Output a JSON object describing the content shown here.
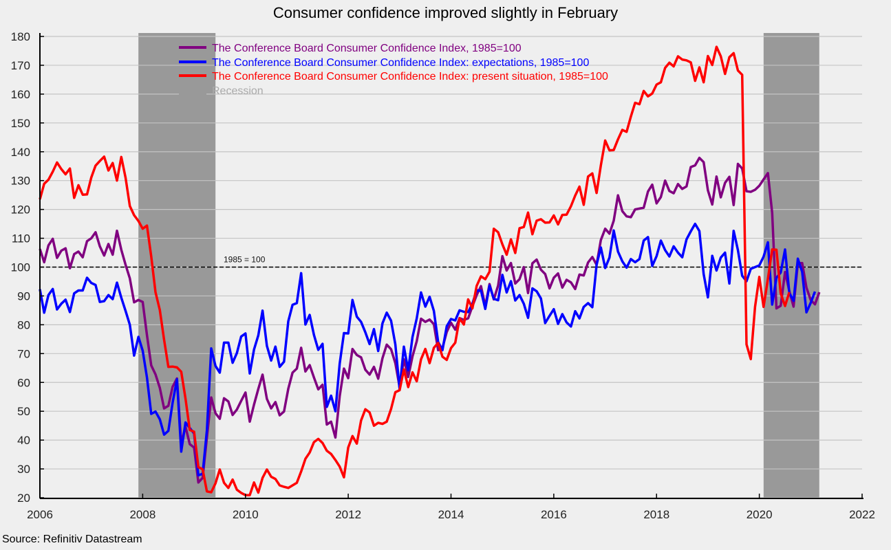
{
  "chart_data": {
    "type": "line",
    "title": "Consumer confidence improved slightly in February",
    "source": "Source: Refinitiv Datastream",
    "xlabel": "",
    "ylabel": "",
    "xlim": [
      2006,
      2022
    ],
    "ylim": [
      20,
      180
    ],
    "x_ticks": [
      "2006",
      "2008",
      "2010",
      "2012",
      "2014",
      "2016",
      "2018",
      "2020",
      "2022"
    ],
    "y_ticks": [
      "20",
      "30",
      "40",
      "50",
      "60",
      "70",
      "80",
      "90",
      "100",
      "110",
      "120",
      "130",
      "140",
      "150",
      "160",
      "170",
      "180"
    ],
    "grid": "horizontal",
    "legend_position": "top-left",
    "x_start": "2006-01",
    "frequency": "monthly",
    "reference_line": {
      "value": 100,
      "label": "1985 = 100",
      "color": "#000000"
    },
    "recessions": [
      {
        "start": 2007.917,
        "end": 2009.417
      },
      {
        "start": 2020.083,
        "end": 2021.167
      }
    ],
    "recession_legend": {
      "name": "Recession",
      "color": "#999999"
    },
    "series": [
      {
        "name": "The Conference Board Consumer Confidence Index, 1985=100",
        "color": "#800080",
        "values": [
          106.3,
          101.7,
          107.5,
          109.8,
          103.2,
          105.7,
          106.5,
          99.6,
          104.5,
          105.4,
          103.4,
          109.0,
          110.0,
          112.1,
          107.2,
          104.0,
          108.0,
          104.3,
          112.6,
          106.0,
          100.8,
          96.1,
          87.8,
          88.6,
          87.9,
          76.4,
          65.9,
          62.8,
          58.1,
          51.0,
          51.9,
          58.5,
          61.4,
          38.8,
          44.7,
          38.6,
          37.4,
          25.3,
          26.9,
          40.8,
          54.8,
          49.3,
          47.4,
          54.5,
          53.4,
          48.7,
          50.6,
          53.6,
          56.5,
          46.4,
          52.3,
          57.7,
          62.7,
          54.3,
          51.0,
          53.2,
          48.6,
          49.9,
          57.8,
          63.4,
          64.8,
          72.0,
          63.8,
          66.0,
          61.7,
          57.6,
          59.2,
          45.4,
          46.4,
          40.9,
          55.2,
          64.8,
          61.5,
          71.6,
          69.5,
          68.7,
          64.4,
          62.7,
          65.4,
          61.3,
          68.4,
          73.1,
          71.5,
          66.7,
          58.4,
          68.0,
          61.9,
          69.0,
          74.3,
          82.1,
          81.0,
          81.8,
          80.2,
          71.2,
          72.0,
          77.5,
          80.7,
          78.3,
          82.3,
          81.7,
          82.2,
          86.4,
          90.3,
          93.4,
          86.4,
          94.1,
          88.8,
          93.6,
          103.8,
          98.8,
          101.4,
          94.3,
          95.8,
          100.0,
          91.0,
          101.3,
          102.6,
          99.1,
          97.6,
          92.6,
          96.3,
          97.8,
          92.9,
          95.6,
          94.7,
          92.4,
          97.4,
          97.1,
          101.6,
          103.5,
          100.8,
          109.4,
          113.3,
          111.6,
          116.1,
          124.9,
          119.4,
          117.6,
          117.3,
          120.0,
          120.3,
          120.6,
          126.2,
          128.6,
          122.1,
          124.3,
          130.0,
          126.4,
          125.6,
          128.8,
          127.1,
          128.0,
          134.7,
          135.3,
          137.9,
          136.4,
          126.6,
          121.7,
          131.4,
          124.2,
          129.2,
          131.3,
          121.5,
          135.8,
          134.2,
          126.3,
          126.1,
          126.8,
          128.2,
          130.4,
          132.6,
          118.8,
          85.7,
          86.6,
          98.3,
          91.7,
          86.3,
          101.3,
          101.4,
          92.9,
          88.6,
          87.1,
          91.3
        ]
      },
      {
        "name": "The Conference Board Consumer Confidence Index: expectations, 1985=100",
        "color": "#0000ff",
        "values": [
          92.3,
          84.2,
          90.3,
          92.4,
          85.3,
          87.3,
          88.7,
          84.4,
          90.9,
          91.9,
          91.9,
          96.3,
          94.5,
          93.8,
          87.9,
          88.2,
          90.3,
          88.9,
          94.6,
          89.4,
          84.8,
          80.0,
          69.3,
          75.8,
          71.0,
          61.7,
          49.1,
          49.9,
          47.2,
          41.9,
          43.2,
          53.0,
          61.1,
          36.0,
          46.1,
          44.2,
          42.3,
          27.8,
          28.3,
          43.4,
          71.8,
          65.7,
          63.4,
          73.8,
          73.8,
          66.8,
          70.2,
          75.9,
          77.0,
          63.1,
          71.4,
          76.3,
          84.9,
          72.7,
          67.6,
          72.4,
          65.4,
          67.2,
          81.2,
          86.9,
          87.5,
          97.9,
          80.1,
          83.4,
          76.5,
          71.3,
          73.4,
          51.5,
          55.4,
          50.0,
          66.5,
          77.1,
          77.0,
          88.6,
          82.8,
          81.0,
          77.4,
          73.3,
          78.5,
          70.9,
          80.5,
          84.2,
          81.4,
          73.2,
          57.7,
          72.4,
          64.2,
          75.7,
          82.2,
          91.2,
          86.3,
          89.7,
          84.8,
          74.0,
          71.2,
          79.5,
          82.0,
          81.5,
          85.0,
          84.5,
          84.4,
          87.3,
          92.0,
          91.8,
          85.5,
          93.6,
          89.0,
          88.5,
          97.3,
          91.2,
          95.1,
          88.4,
          90.3,
          87.3,
          82.4,
          92.6,
          91.6,
          89.1,
          80.6,
          83.1,
          85.4,
          80.3,
          83.7,
          80.8,
          79.4,
          84.7,
          82.2,
          86.2,
          87.5,
          86.1,
          100.8,
          106.8,
          99.7,
          103.3,
          112.7,
          105.4,
          102.0,
          99.8,
          102.8,
          101.7,
          102.8,
          109.2,
          110.4,
          100.4,
          103.8,
          109.2,
          105.9,
          103.7,
          107.2,
          105.0,
          103.4,
          109.6,
          112.4,
          115.0,
          112.5,
          97.6,
          89.5,
          103.9,
          98.8,
          103.3,
          105.0,
          94.3,
          112.6,
          105.9,
          97.0,
          95.1,
          99.4,
          100.0,
          100.6,
          103.6,
          108.6,
          87.0,
          96.3,
          98.1,
          106.1,
          91.1,
          88.3,
          102.9,
          98.3,
          84.3,
          87.6,
          91.5
        ]
      },
      {
        "name": "The Conference Board Consumer Confidence Index: present situation, 1985=100",
        "color": "#ff0000",
        "values": [
          123.5,
          128.9,
          130.3,
          133.1,
          136.3,
          134.0,
          132.2,
          134.2,
          124.0,
          128.4,
          125.1,
          125.2,
          131.1,
          135.2,
          136.8,
          138.3,
          133.5,
          136.1,
          130.0,
          138.2,
          131.0,
          121.2,
          118.0,
          116.0,
          113.3,
          114.4,
          103.7,
          91.3,
          85.1,
          74.8,
          65.4,
          65.5,
          65.2,
          63.7,
          54.4,
          43.5,
          42.9,
          30.6,
          29.9,
          22.2,
          21.9,
          25.0,
          29.8,
          25.2,
          23.4,
          26.3,
          22.8,
          21.7,
          20.9,
          20.9,
          25.3,
          21.8,
          26.9,
          29.8,
          27.3,
          26.5,
          24.3,
          23.8,
          23.4,
          24.3,
          25.2,
          29.1,
          33.5,
          35.7,
          39.3,
          40.4,
          39.0,
          36.3,
          35.2,
          33.1,
          30.8,
          27.1,
          37.4,
          41.4,
          38.8,
          46.8,
          50.7,
          49.6,
          45.0,
          46.0,
          45.6,
          46.4,
          50.8,
          56.6,
          57.3,
          64.5,
          58.4,
          63.5,
          60.4,
          68.0,
          71.6,
          66.7,
          72.0,
          73.7,
          68.9,
          67.8,
          71.9,
          73.8,
          82.2,
          80.1,
          88.8,
          85.7,
          93.5,
          96.8,
          95.8,
          98.4,
          113.3,
          112.1,
          107.9,
          104.3,
          109.6,
          104.9,
          113.5,
          113.9,
          118.9,
          111.4,
          116.1,
          116.6,
          115.4,
          115.5,
          117.9,
          114.8,
          118.1,
          118.2,
          121.1,
          124.8,
          127.9,
          121.6,
          131.4,
          132.5,
          125.7,
          135.3,
          143.9,
          140.5,
          140.6,
          144.3,
          147.6,
          146.9,
          152.2,
          157.0,
          156.5,
          161.1,
          159.2,
          160.2,
          163.3,
          164.1,
          169.1,
          170.9,
          169.6,
          173.1,
          172.0,
          171.7,
          171.0,
          164.6,
          169.3,
          164.1,
          173.2,
          170.1,
          176.4,
          173.1,
          167.0,
          172.8,
          174.2,
          168.2,
          166.7,
          73.2,
          68.1,
          86.2,
          96.6,
          86.2,
          95.9,
          106.1,
          106.0,
          90.9,
          86.5,
          91.3
        ]
      }
    ]
  }
}
